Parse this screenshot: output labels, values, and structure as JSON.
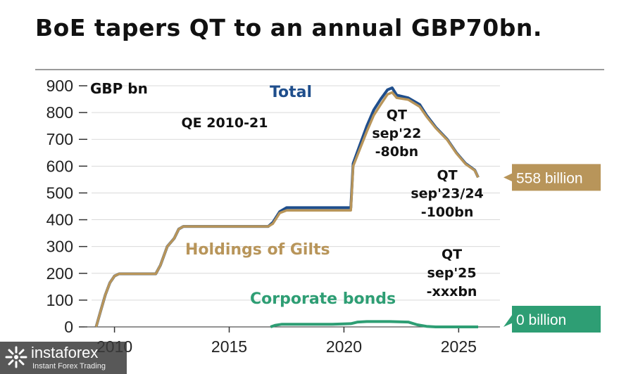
{
  "title": "BoE tapers QT to an annual GBP70bn.",
  "chart_data": {
    "type": "line",
    "unit_label": "GBP bn",
    "ylim": [
      0,
      900
    ],
    "yticks": [
      0,
      100,
      200,
      300,
      400,
      500,
      600,
      700,
      800,
      900
    ],
    "xlim": [
      2009,
      2026.8
    ],
    "xticks": [
      2010,
      2015,
      2020,
      2025
    ],
    "grid": true,
    "series": [
      {
        "name": "Total",
        "color": "#1f4e8c",
        "points": [
          [
            2009.2,
            0
          ],
          [
            2009.4,
            60
          ],
          [
            2009.6,
            120
          ],
          [
            2009.8,
            165
          ],
          [
            2010.0,
            190
          ],
          [
            2010.2,
            198
          ],
          [
            2011.0,
            198
          ],
          [
            2011.8,
            198
          ],
          [
            2012.0,
            230
          ],
          [
            2012.3,
            300
          ],
          [
            2012.6,
            330
          ],
          [
            2012.8,
            365
          ],
          [
            2013.0,
            375
          ],
          [
            2014.5,
            375
          ],
          [
            2015.5,
            375
          ],
          [
            2016.7,
            375
          ],
          [
            2016.9,
            390
          ],
          [
            2017.2,
            430
          ],
          [
            2017.5,
            445
          ],
          [
            2018.5,
            445
          ],
          [
            2019.5,
            445
          ],
          [
            2020.3,
            445
          ],
          [
            2020.4,
            610
          ],
          [
            2020.7,
            680
          ],
          [
            2021.0,
            750
          ],
          [
            2021.3,
            810
          ],
          [
            2021.6,
            850
          ],
          [
            2021.9,
            885
          ],
          [
            2022.1,
            892
          ],
          [
            2022.3,
            865
          ],
          [
            2022.8,
            855
          ],
          [
            2023.3,
            830
          ],
          [
            2023.6,
            790
          ],
          [
            2024.0,
            745
          ],
          [
            2024.5,
            700
          ],
          [
            2024.9,
            650
          ],
          [
            2025.3,
            610
          ],
          [
            2025.7,
            585
          ],
          [
            2025.85,
            558
          ]
        ]
      },
      {
        "name": "Holdings of Gilts",
        "color": "#b8955a",
        "points": [
          [
            2009.2,
            0
          ],
          [
            2009.4,
            60
          ],
          [
            2009.6,
            120
          ],
          [
            2009.8,
            165
          ],
          [
            2010.0,
            190
          ],
          [
            2010.2,
            198
          ],
          [
            2011.0,
            198
          ],
          [
            2011.8,
            198
          ],
          [
            2012.0,
            230
          ],
          [
            2012.3,
            300
          ],
          [
            2012.6,
            330
          ],
          [
            2012.8,
            365
          ],
          [
            2013.0,
            375
          ],
          [
            2014.5,
            375
          ],
          [
            2015.5,
            375
          ],
          [
            2016.7,
            375
          ],
          [
            2016.9,
            385
          ],
          [
            2017.2,
            425
          ],
          [
            2017.5,
            435
          ],
          [
            2018.5,
            435
          ],
          [
            2019.5,
            435
          ],
          [
            2020.3,
            435
          ],
          [
            2020.4,
            600
          ],
          [
            2020.7,
            665
          ],
          [
            2021.0,
            730
          ],
          [
            2021.3,
            790
          ],
          [
            2021.6,
            830
          ],
          [
            2021.9,
            868
          ],
          [
            2022.1,
            875
          ],
          [
            2022.3,
            855
          ],
          [
            2022.8,
            848
          ],
          [
            2023.3,
            822
          ],
          [
            2023.6,
            785
          ],
          [
            2024.0,
            742
          ],
          [
            2024.5,
            698
          ],
          [
            2024.9,
            648
          ],
          [
            2025.3,
            608
          ],
          [
            2025.7,
            584
          ],
          [
            2025.85,
            558
          ]
        ]
      },
      {
        "name": "Corporate bonds",
        "color": "#2e9e74",
        "points": [
          [
            2016.8,
            0
          ],
          [
            2017.0,
            6
          ],
          [
            2017.3,
            10
          ],
          [
            2018.5,
            10
          ],
          [
            2019.5,
            10
          ],
          [
            2020.3,
            12
          ],
          [
            2020.6,
            18
          ],
          [
            2021.0,
            20
          ],
          [
            2022.0,
            20
          ],
          [
            2022.8,
            18
          ],
          [
            2023.2,
            8
          ],
          [
            2023.6,
            2
          ],
          [
            2024.0,
            0
          ],
          [
            2025.0,
            0
          ],
          [
            2025.85,
            0
          ]
        ]
      }
    ],
    "annotations": [
      {
        "text": "QE 2010-21",
        "x": 2014.8,
        "y": 745
      },
      {
        "text": "QT",
        "x": 2022.3,
        "y": 775
      },
      {
        "text": "sep'22",
        "x": 2022.3,
        "y": 706
      },
      {
        "text": "-80bn",
        "x": 2022.3,
        "y": 637
      },
      {
        "text": "QT",
        "x": 2024.5,
        "y": 550
      },
      {
        "text": "sep'23/24",
        "x": 2024.5,
        "y": 481
      },
      {
        "text": "-100bn",
        "x": 2024.5,
        "y": 412
      },
      {
        "text": "QT",
        "x": 2024.7,
        "y": 254
      },
      {
        "text": "sep'25",
        "x": 2024.7,
        "y": 185
      },
      {
        "text": "-xxxbn",
        "x": 2024.7,
        "y": 116
      }
    ],
    "end_labels": [
      {
        "text": "558 billion",
        "value": 558,
        "color": "#b8955a"
      },
      {
        "text": "0 billion",
        "value": 0,
        "color": "#2e9e74"
      }
    ]
  },
  "watermark": {
    "name": "instaforex",
    "tagline": "Instant Forex Trading"
  }
}
